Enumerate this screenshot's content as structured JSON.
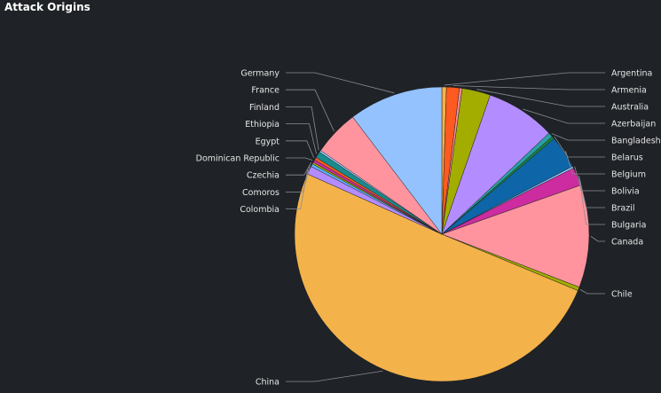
{
  "panel": {
    "title": "Attack Origins"
  },
  "chart_data": {
    "type": "pie",
    "title": "Attack Origins",
    "start_angle_deg": 0,
    "direction": "clockwise",
    "slices": [
      {
        "label": "Argentina",
        "value": 0.5,
        "color": "#f4b24a"
      },
      {
        "label": "Armenia",
        "value": 1.4,
        "color": "#ff5a1f"
      },
      {
        "label": "Australia",
        "value": 0.3,
        "color": "#ff8c9a"
      },
      {
        "label": "Australia-alt",
        "value": 3.1,
        "color": "#a2ad00"
      },
      {
        "label": "Azerbaijan",
        "value": 7.6,
        "color": "#b38cff"
      },
      {
        "label": "Bangladesh",
        "value": 0.5,
        "color": "#2aa0a4"
      },
      {
        "label": "Belarus",
        "value": 0.3,
        "color": "#1c7f3f"
      },
      {
        "label": "Belgium",
        "value": 3.6,
        "color": "#0e66a8"
      },
      {
        "label": "Bolivia",
        "value": 0.2,
        "color": "#9ad0ff"
      },
      {
        "label": "Brazil",
        "value": 2.0,
        "color": "#cc2c9f"
      },
      {
        "label": "Canada",
        "value": 11.2,
        "color": "#ff949e"
      },
      {
        "label": "Chile",
        "value": 0.4,
        "color": "#a2ad00"
      },
      {
        "label": "China",
        "value": 50.2,
        "color": "#f4b24a"
      },
      {
        "label": "Colombia",
        "value": 0.9,
        "color": "#b38cff"
      },
      {
        "label": "Comoros",
        "value": 0.3,
        "color": "#5fb2ff"
      },
      {
        "label": "Czechia",
        "value": 0.2,
        "color": "#a2ad00"
      },
      {
        "label": "Dominican Republic",
        "value": 0.3,
        "color": "#cc2c9f"
      },
      {
        "label": "Egypt",
        "value": 0.3,
        "color": "#ff5a1f"
      },
      {
        "label": "Ethiopia",
        "value": 0.7,
        "color": "#1a8a8c"
      },
      {
        "label": "Finland",
        "value": 0.2,
        "color": "#9ad0ff"
      },
      {
        "label": "France",
        "value": 5.0,
        "color": "#ff949e"
      },
      {
        "label": "Germany",
        "value": 10.3,
        "color": "#93c2ff"
      }
    ],
    "right_labels": [
      {
        "text": "Argentina",
        "slice": 0
      },
      {
        "text": "Armenia",
        "slice": 1
      },
      {
        "text": "Australia",
        "slice": 3
      },
      {
        "text": "Azerbaijan",
        "slice": 4
      },
      {
        "text": "Bangladesh",
        "slice": 5
      },
      {
        "text": "Belarus",
        "slice": 6
      },
      {
        "text": "Belgium",
        "slice": 7
      },
      {
        "text": "Bolivia",
        "slice": 8
      },
      {
        "text": "Brazil",
        "slice": 9
      },
      {
        "text": "Bulgaria",
        "slice": 9
      },
      {
        "text": "Canada",
        "slice": 10
      },
      {
        "text": "Chile",
        "slice": 11
      }
    ],
    "left_labels": [
      {
        "text": "Germany",
        "slice": 21
      },
      {
        "text": "France",
        "slice": 20
      },
      {
        "text": "Finland",
        "slice": 19
      },
      {
        "text": "Ethiopia",
        "slice": 18
      },
      {
        "text": "Egypt",
        "slice": 17
      },
      {
        "text": "Dominican Republic",
        "slice": 16
      },
      {
        "text": "Czechia",
        "slice": 15
      },
      {
        "text": "Comoros",
        "slice": 14
      },
      {
        "text": "Colombia",
        "slice": 13
      },
      {
        "text": "China",
        "slice": 12
      }
    ]
  }
}
